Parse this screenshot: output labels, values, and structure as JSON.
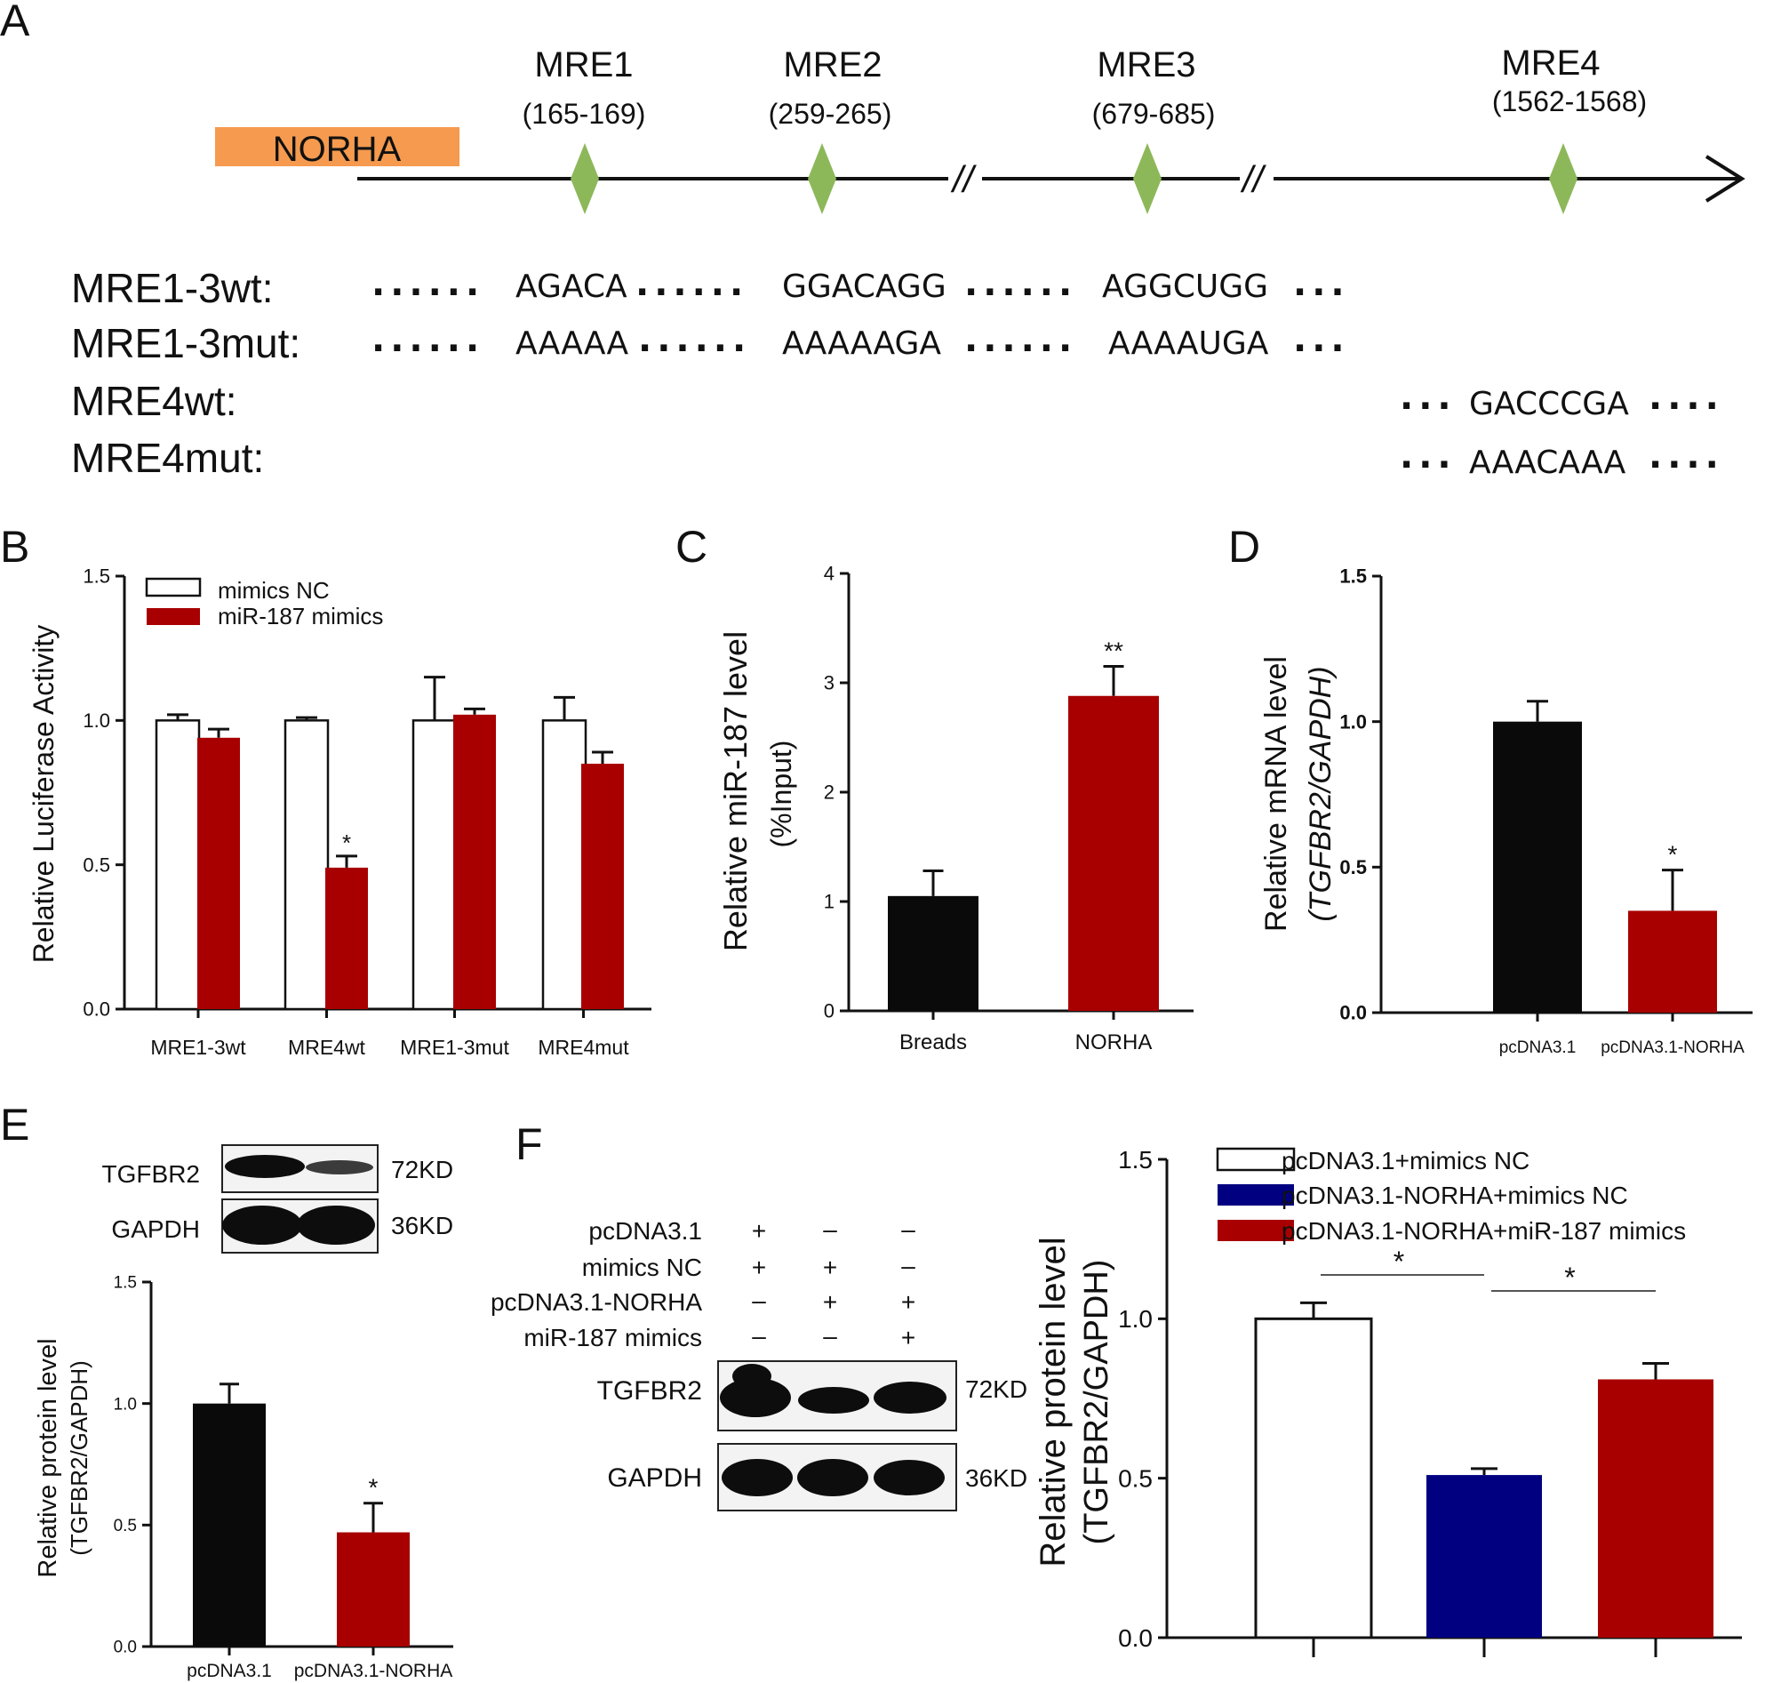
{
  "panels": {
    "A": "A",
    "B": "B",
    "C": "C",
    "D": "D",
    "E": "E",
    "F": "F"
  },
  "panelA": {
    "gene_label": "NORHA",
    "gene_color": "#F59A4E",
    "site_color": "#8DB85A",
    "sites": [
      {
        "name": "MRE1",
        "range": "(165-169)"
      },
      {
        "name": "MRE2",
        "range": "(259-265)"
      },
      {
        "name": "MRE3",
        "range": "(679-685)"
      },
      {
        "name": "MRE4",
        "range": "(1562-1568)"
      }
    ],
    "break_mark": "//",
    "seq_rows": [
      {
        "label": "MRE1-3wt:",
        "seqs": [
          "AGACA",
          "GGACAGG",
          "AGGCUGG"
        ]
      },
      {
        "label": "MRE1-3mut:",
        "seqs": [
          "AAAAA",
          "AAAAAGA",
          "AAAAUGA"
        ]
      },
      {
        "label": "MRE4wt:",
        "seqs": [
          "GACCCGA"
        ]
      },
      {
        "label": "MRE4mut:",
        "seqs": [
          "AAACAAA"
        ]
      }
    ],
    "dots": "......",
    "dots_short": "...",
    "dots_end": "...."
  },
  "colors": {
    "red": "#A80000",
    "black": "#0a0a0a",
    "white": "#ffffff",
    "blue": "#000080"
  },
  "chart_data": [
    {
      "panel": "B",
      "type": "bar",
      "ylabel": "Relative Luciferase Activity",
      "ylim": [
        0,
        1.5
      ],
      "yticks": [
        "0.0",
        "0.5",
        "1.0",
        "1.5"
      ],
      "categories": [
        "MRE1-3wt",
        "MRE4wt",
        "MRE1-3mut",
        "MRE4mut"
      ],
      "series": [
        {
          "name": "mimics NC",
          "values": [
            1.0,
            1.0,
            1.0,
            1.0
          ],
          "errors": [
            0.02,
            0.01,
            0.15,
            0.08
          ]
        },
        {
          "name": "miR-187 mimics",
          "values": [
            0.94,
            0.49,
            1.02,
            0.85
          ],
          "errors": [
            0.03,
            0.04,
            0.02,
            0.04
          ]
        }
      ],
      "annotations": [
        {
          "category": "MRE4wt",
          "series": "miR-187 mimics",
          "text": "*"
        }
      ]
    },
    {
      "panel": "C",
      "type": "bar",
      "ylabel": "Relative miR-187 level",
      "ylabel2": "(%Input)",
      "ylim": [
        0,
        4
      ],
      "yticks": [
        "0",
        "1",
        "2",
        "3",
        "4"
      ],
      "categories": [
        "Breads",
        "NORHA"
      ],
      "values": [
        1.05,
        2.88
      ],
      "errors": [
        0.23,
        0.27
      ],
      "annotations": [
        {
          "category": "NORHA",
          "text": "**"
        }
      ]
    },
    {
      "panel": "D",
      "type": "bar",
      "ylabel": "Relative mRNA level",
      "ylabel2": "(TGFBR2/GAPDH)",
      "ylim": [
        0,
        1.5
      ],
      "yticks": [
        "0.0",
        "0.5",
        "1.0",
        "1.5"
      ],
      "categories": [
        "pcDNA3.1",
        "pcDNA3.1-NORHA"
      ],
      "values": [
        1.0,
        0.35
      ],
      "errors": [
        0.07,
        0.14
      ],
      "annotations": [
        {
          "category": "pcDNA3.1-NORHA",
          "text": "*"
        }
      ]
    },
    {
      "panel": "E",
      "type": "bar",
      "ylabel": "Relative protein level",
      "ylabel2": "(TGFBR2/GAPDH)",
      "ylim": [
        0,
        1.5
      ],
      "yticks": [
        "0.0",
        "0.5",
        "1.0",
        "1.5"
      ],
      "categories": [
        "pcDNA3.1",
        "pcDNA3.1-NORHA"
      ],
      "values": [
        1.0,
        0.47
      ],
      "errors": [
        0.08,
        0.12
      ],
      "annotations": [
        {
          "category": "pcDNA3.1-NORHA",
          "text": "*"
        }
      ]
    },
    {
      "panel": "F",
      "type": "bar",
      "ylabel": "Relative protein level",
      "ylabel2": "(TGFBR2/GAPDH)",
      "ylim": [
        0,
        1.5
      ],
      "yticks": [
        "0.0",
        "0.5",
        "1.0",
        "1.5"
      ],
      "categories": [
        "pcDNA3.1+mimics NC",
        "pcDNA3.1-NORHA+mimics NC",
        "pcDNA3.1-NORHA+miR-187 mimics"
      ],
      "values": [
        1.0,
        0.51,
        0.81
      ],
      "errors": [
        0.05,
        0.02,
        0.05
      ],
      "legend_placement": "top-right",
      "comparisons": [
        {
          "from": 0,
          "to": 1,
          "text": "*"
        },
        {
          "from": 1,
          "to": 2,
          "text": "*"
        }
      ]
    }
  ],
  "blotE": {
    "rows": [
      {
        "protein": "TGFBR2",
        "size": "72KD"
      },
      {
        "protein": "GAPDH",
        "size": "36KD"
      }
    ]
  },
  "blotF": {
    "conditions": [
      {
        "label": "pcDNA3.1",
        "signs": [
          "+",
          "–",
          "–"
        ]
      },
      {
        "label": "mimics NC",
        "signs": [
          "+",
          "+",
          "–"
        ]
      },
      {
        "label": "pcDNA3.1-NORHA",
        "signs": [
          "–",
          "+",
          "+"
        ]
      },
      {
        "label": "miR-187 mimics",
        "signs": [
          "–",
          "–",
          "+"
        ]
      }
    ],
    "rows": [
      {
        "protein": "TGFBR2",
        "size": "72KD"
      },
      {
        "protein": "GAPDH",
        "size": "36KD"
      }
    ]
  }
}
